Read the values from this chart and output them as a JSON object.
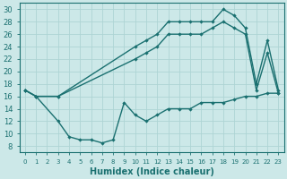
{
  "xlabel": "Humidex (Indice chaleur)",
  "bg_color": "#cce8e8",
  "line_color": "#1a7070",
  "grid_color": "#aed4d4",
  "xlim_min": -0.5,
  "xlim_max": 23.5,
  "ylim_min": 7,
  "ylim_max": 31,
  "xticks": [
    0,
    1,
    2,
    3,
    4,
    5,
    6,
    7,
    8,
    9,
    10,
    11,
    12,
    13,
    14,
    15,
    16,
    17,
    18,
    19,
    20,
    21,
    22,
    23
  ],
  "yticks": [
    8,
    10,
    12,
    14,
    16,
    18,
    20,
    22,
    24,
    26,
    28,
    30
  ],
  "line_bottom_x": [
    0,
    1,
    3,
    4,
    5,
    6,
    7,
    8,
    9,
    10,
    11,
    12,
    13,
    14,
    15,
    16,
    17,
    18,
    19,
    20,
    21,
    22,
    23
  ],
  "line_bottom_y": [
    17,
    16,
    12,
    9.5,
    9,
    9,
    8.5,
    9,
    15,
    13,
    12,
    13,
    14,
    14,
    14,
    15,
    15,
    15,
    15.5,
    16,
    16,
    16.5,
    16.5
  ],
  "line_top_x": [
    0,
    1,
    3,
    10,
    11,
    12,
    13,
    14,
    15,
    16,
    17,
    18,
    19,
    20,
    21,
    22,
    23
  ],
  "line_top_y": [
    17,
    16,
    16,
    24,
    25,
    26,
    28,
    28,
    28,
    28,
    28,
    30,
    29,
    27,
    18,
    25,
    17
  ],
  "line_mid_x": [
    0,
    1,
    3,
    10,
    11,
    12,
    13,
    14,
    15,
    16,
    17,
    18,
    19,
    20,
    21,
    22,
    23
  ],
  "line_mid_y": [
    17,
    16,
    16,
    22,
    23,
    24,
    26,
    26,
    26,
    26,
    27,
    28,
    27,
    26,
    17,
    23,
    16.5
  ]
}
